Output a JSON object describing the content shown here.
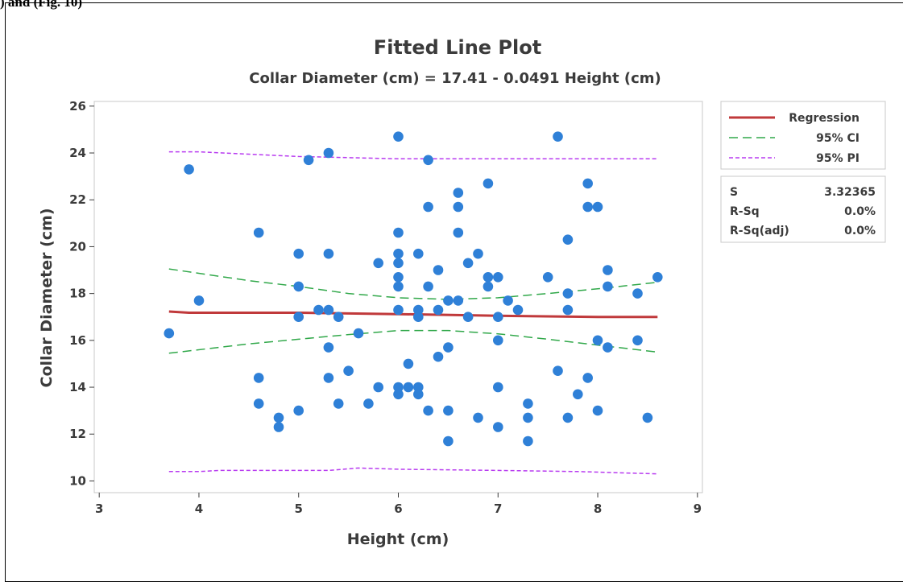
{
  "page": {
    "top_caption": ") and (Fig. 10)"
  },
  "chart_data": {
    "type": "scatter",
    "title": "Fitted Line Plot",
    "subtitle": "Collar Diameter (cm) = 17.41 - 0.0491 Height (cm)",
    "xlabel": "Height (cm)",
    "ylabel": "Collar Diameter (cm)",
    "xlim": [
      2.95,
      9.05
    ],
    "ylim": [
      9.5,
      26.2
    ],
    "xticks": [
      3,
      4,
      5,
      6,
      7,
      8,
      9
    ],
    "yticks": [
      10,
      12,
      14,
      16,
      18,
      20,
      22,
      24,
      26
    ],
    "grid": false,
    "legend_position": "right",
    "colors": {
      "points": "#2f80d7",
      "regression": "#c0393b",
      "ci": "#31a84a",
      "pi": "#b83bf0",
      "text": "#3b3b3b",
      "frame": "#c8c8c8"
    },
    "points": [
      [
        3.7,
        16.3
      ],
      [
        3.9,
        23.3
      ],
      [
        4.0,
        17.7
      ],
      [
        4.6,
        20.6
      ],
      [
        4.6,
        14.4
      ],
      [
        4.6,
        13.3
      ],
      [
        4.8,
        12.7
      ],
      [
        4.8,
        12.3
      ],
      [
        5.0,
        19.7
      ],
      [
        5.0,
        18.3
      ],
      [
        5.0,
        17.0
      ],
      [
        5.0,
        13.0
      ],
      [
        5.1,
        23.7
      ],
      [
        5.2,
        17.3
      ],
      [
        5.3,
        24.0
      ],
      [
        5.3,
        19.7
      ],
      [
        5.3,
        17.3
      ],
      [
        5.3,
        15.7
      ],
      [
        5.3,
        14.4
      ],
      [
        5.4,
        17.0
      ],
      [
        5.4,
        13.3
      ],
      [
        5.5,
        14.7
      ],
      [
        5.6,
        16.3
      ],
      [
        5.7,
        13.3
      ],
      [
        5.8,
        19.3
      ],
      [
        5.8,
        14.0
      ],
      [
        6.0,
        24.7
      ],
      [
        6.0,
        20.6
      ],
      [
        6.0,
        19.7
      ],
      [
        6.0,
        19.3
      ],
      [
        6.0,
        18.7
      ],
      [
        6.0,
        18.3
      ],
      [
        6.0,
        17.3
      ],
      [
        6.0,
        14.0
      ],
      [
        6.0,
        13.7
      ],
      [
        6.1,
        15.0
      ],
      [
        6.1,
        14.0
      ],
      [
        6.2,
        19.7
      ],
      [
        6.2,
        17.3
      ],
      [
        6.2,
        17.0
      ],
      [
        6.2,
        14.0
      ],
      [
        6.2,
        13.7
      ],
      [
        6.3,
        23.7
      ],
      [
        6.3,
        21.7
      ],
      [
        6.3,
        18.3
      ],
      [
        6.3,
        13.0
      ],
      [
        6.4,
        19.0
      ],
      [
        6.4,
        17.3
      ],
      [
        6.4,
        15.3
      ],
      [
        6.5,
        17.7
      ],
      [
        6.5,
        15.7
      ],
      [
        6.5,
        13.0
      ],
      [
        6.5,
        11.7
      ],
      [
        6.6,
        22.3
      ],
      [
        6.6,
        21.7
      ],
      [
        6.6,
        20.6
      ],
      [
        6.6,
        17.7
      ],
      [
        6.7,
        19.3
      ],
      [
        6.7,
        17.0
      ],
      [
        6.8,
        19.7
      ],
      [
        6.8,
        12.7
      ],
      [
        6.9,
        22.7
      ],
      [
        6.9,
        18.7
      ],
      [
        6.9,
        18.3
      ],
      [
        7.0,
        18.7
      ],
      [
        7.0,
        17.0
      ],
      [
        7.0,
        16.0
      ],
      [
        7.0,
        14.0
      ],
      [
        7.0,
        12.3
      ],
      [
        7.1,
        17.7
      ],
      [
        7.2,
        17.3
      ],
      [
        7.3,
        13.3
      ],
      [
        7.3,
        12.7
      ],
      [
        7.3,
        11.7
      ],
      [
        7.5,
        18.7
      ],
      [
        7.6,
        24.7
      ],
      [
        7.6,
        14.7
      ],
      [
        7.7,
        20.3
      ],
      [
        7.7,
        18.0
      ],
      [
        7.7,
        17.3
      ],
      [
        7.7,
        12.7
      ],
      [
        7.8,
        13.7
      ],
      [
        7.9,
        22.7
      ],
      [
        7.9,
        21.7
      ],
      [
        7.9,
        14.4
      ],
      [
        8.0,
        21.7
      ],
      [
        8.0,
        16.0
      ],
      [
        8.0,
        13.0
      ],
      [
        8.1,
        19.0
      ],
      [
        8.1,
        18.3
      ],
      [
        8.1,
        15.7
      ],
      [
        8.4,
        18.0
      ],
      [
        8.4,
        16.0
      ],
      [
        8.5,
        12.7
      ],
      [
        8.6,
        18.7
      ]
    ],
    "regression": [
      [
        3.7,
        17.23
      ],
      [
        3.9,
        17.18
      ],
      [
        5.0,
        17.18
      ],
      [
        6.0,
        17.12
      ],
      [
        7.0,
        17.05
      ],
      [
        8.0,
        17.0
      ],
      [
        8.6,
        17.0
      ]
    ],
    "ci_upper": [
      [
        3.7,
        19.05
      ],
      [
        4.5,
        18.55
      ],
      [
        5.0,
        18.3
      ],
      [
        5.5,
        18.0
      ],
      [
        6.0,
        17.82
      ],
      [
        6.5,
        17.75
      ],
      [
        7.0,
        17.82
      ],
      [
        7.5,
        18.0
      ],
      [
        8.0,
        18.2
      ],
      [
        8.6,
        18.48
      ]
    ],
    "ci_lower": [
      [
        3.7,
        15.45
      ],
      [
        4.5,
        15.85
      ],
      [
        5.0,
        16.05
      ],
      [
        5.5,
        16.25
      ],
      [
        6.0,
        16.42
      ],
      [
        6.5,
        16.42
      ],
      [
        7.0,
        16.28
      ],
      [
        7.5,
        16.05
      ],
      [
        8.0,
        15.8
      ],
      [
        8.6,
        15.5
      ]
    ],
    "pi_upper": [
      [
        3.7,
        24.05
      ],
      [
        4.0,
        24.05
      ],
      [
        4.5,
        23.95
      ],
      [
        5.0,
        23.85
      ],
      [
        5.5,
        23.8
      ],
      [
        6.0,
        23.75
      ],
      [
        7.0,
        23.75
      ],
      [
        8.0,
        23.75
      ],
      [
        8.6,
        23.75
      ]
    ],
    "pi_lower": [
      [
        3.7,
        10.4
      ],
      [
        4.0,
        10.4
      ],
      [
        4.2,
        10.45
      ],
      [
        5.0,
        10.45
      ],
      [
        5.3,
        10.45
      ],
      [
        5.6,
        10.55
      ],
      [
        6.0,
        10.5
      ],
      [
        7.0,
        10.45
      ],
      [
        7.8,
        10.4
      ],
      [
        8.6,
        10.3
      ]
    ],
    "legend": [
      {
        "label": "Regression",
        "style": "solid",
        "color": "#c0393b"
      },
      {
        "label": "95% CI",
        "style": "long-dash",
        "color": "#31a84a"
      },
      {
        "label": "95% PI",
        "style": "short-dash",
        "color": "#b83bf0"
      }
    ],
    "stats": [
      {
        "label": "S",
        "value": "3.32365"
      },
      {
        "label": "R-Sq",
        "value": "0.0%"
      },
      {
        "label": "R-Sq(adj)",
        "value": "0.0%"
      }
    ]
  }
}
